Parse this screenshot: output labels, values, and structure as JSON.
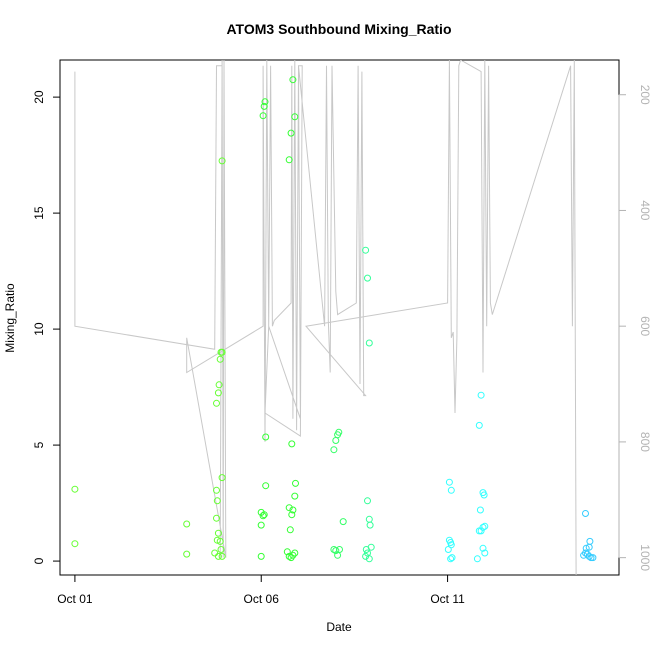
{
  "chart_data": {
    "type": "scatter",
    "title": "ATOM3 Southbound Mixing_Ratio",
    "xlabel": "Date",
    "ylabel": "Mixing_Ratio",
    "x_ticks": [
      {
        "x": 0,
        "label": "Oct 01"
      },
      {
        "x": 5,
        "label": "Oct 06"
      },
      {
        "x": 10,
        "label": "Oct 11"
      }
    ],
    "xlim": [
      -0.4,
      14.6
    ],
    "ylim": [
      -0.6,
      21.6
    ],
    "y_ticks": [
      0,
      5,
      10,
      15,
      20
    ],
    "y2_label": "",
    "y2_ticks": [
      200,
      400,
      600,
      800,
      1000
    ],
    "y2lim": [
      1030,
      140
    ],
    "y2_color": "#b3b3b3",
    "grid": false,
    "series": [
      {
        "color": "#66ff33",
        "points": [
          [
            0.0,
            3.1
          ],
          [
            0.0,
            0.75
          ],
          [
            3.0,
            1.6
          ],
          [
            3.0,
            0.3
          ],
          [
            3.8,
            3.05
          ],
          [
            3.82,
            2.6
          ],
          [
            3.8,
            1.85
          ],
          [
            3.85,
            1.2
          ],
          [
            3.82,
            0.9
          ],
          [
            3.9,
            0.85
          ],
          [
            3.92,
            0.5
          ],
          [
            3.75,
            0.35
          ],
          [
            3.85,
            0.2
          ],
          [
            3.95,
            0.2
          ],
          [
            3.95,
            3.6
          ],
          [
            3.8,
            6.8
          ],
          [
            3.85,
            7.25
          ],
          [
            3.87,
            7.6
          ],
          [
            3.9,
            8.7
          ],
          [
            3.92,
            9.0
          ],
          [
            3.95,
            9.0
          ],
          [
            3.95,
            17.25
          ]
        ]
      },
      {
        "color": "#33ff33",
        "points": [
          [
            5.0,
            0.2
          ],
          [
            5.0,
            1.55
          ],
          [
            5.0,
            2.1
          ],
          [
            5.05,
            1.95
          ],
          [
            5.08,
            2.0
          ],
          [
            5.12,
            3.25
          ],
          [
            5.12,
            5.35
          ],
          [
            5.05,
            19.2
          ],
          [
            5.08,
            19.6
          ],
          [
            5.1,
            19.8
          ],
          [
            5.7,
            0.4
          ],
          [
            5.75,
            0.2
          ],
          [
            5.8,
            0.15
          ],
          [
            5.85,
            0.25
          ],
          [
            5.9,
            0.35
          ],
          [
            5.78,
            1.35
          ],
          [
            5.82,
            2.0
          ],
          [
            5.85,
            2.2
          ],
          [
            5.75,
            2.3
          ],
          [
            5.9,
            2.8
          ],
          [
            5.92,
            3.35
          ],
          [
            5.82,
            5.05
          ],
          [
            5.75,
            17.3
          ],
          [
            5.8,
            18.45
          ],
          [
            5.85,
            20.75
          ],
          [
            5.9,
            19.15
          ]
        ]
      },
      {
        "color": "#33ff66",
        "points": [
          [
            6.95,
            0.5
          ],
          [
            7.0,
            0.45
          ],
          [
            7.05,
            0.25
          ],
          [
            7.1,
            0.5
          ],
          [
            7.2,
            1.7
          ],
          [
            6.95,
            4.8
          ],
          [
            7.0,
            5.2
          ],
          [
            7.05,
            5.45
          ],
          [
            7.08,
            5.55
          ]
        ]
      },
      {
        "color": "#33ff99",
        "points": [
          [
            7.8,
            0.2
          ],
          [
            7.85,
            0.35
          ],
          [
            7.9,
            0.1
          ],
          [
            7.95,
            0.6
          ],
          [
            7.82,
            0.5
          ],
          [
            7.9,
            1.8
          ],
          [
            7.92,
            1.55
          ],
          [
            7.85,
            2.6
          ],
          [
            7.8,
            13.4
          ],
          [
            7.85,
            12.2
          ],
          [
            7.9,
            9.4
          ]
        ]
      },
      {
        "color": "#33ffff",
        "points": [
          [
            10.05,
            3.4
          ],
          [
            10.1,
            3.05
          ],
          [
            10.05,
            0.9
          ],
          [
            10.08,
            0.8
          ],
          [
            10.1,
            0.7
          ],
          [
            10.02,
            0.5
          ],
          [
            10.12,
            0.15
          ],
          [
            10.08,
            0.1
          ],
          [
            10.8,
            0.1
          ],
          [
            10.85,
            1.3
          ],
          [
            10.9,
            1.3
          ],
          [
            10.95,
            1.45
          ],
          [
            11.0,
            1.5
          ],
          [
            10.88,
            2.2
          ],
          [
            10.95,
            2.95
          ],
          [
            10.98,
            2.85
          ],
          [
            10.95,
            0.55
          ],
          [
            11.0,
            0.35
          ],
          [
            10.85,
            5.85
          ],
          [
            10.9,
            7.15
          ]
        ]
      },
      {
        "color": "#33ccff",
        "points": [
          [
            13.65,
            0.25
          ],
          [
            13.7,
            0.35
          ],
          [
            13.75,
            0.3
          ],
          [
            13.8,
            0.2
          ],
          [
            13.85,
            0.15
          ],
          [
            13.9,
            0.15
          ],
          [
            13.72,
            0.55
          ],
          [
            13.8,
            0.6
          ],
          [
            13.82,
            0.85
          ],
          [
            13.7,
            2.05
          ]
        ]
      }
    ],
    "pressure_line": {
      "color": "#c8c8c8",
      "points": [
        [
          0.0,
          160
        ],
        [
          0.0,
          600
        ],
        [
          3.75,
          640
        ],
        [
          3.8,
          150
        ],
        [
          3.95,
          150
        ],
        [
          3.9,
          1000
        ],
        [
          3.95,
          140
        ],
        [
          3.98,
          1000
        ],
        [
          4.0,
          140
        ],
        [
          4.05,
          1000
        ],
        [
          3.0,
          620
        ],
        [
          3.0,
          680
        ],
        [
          5.05,
          600
        ],
        [
          5.05,
          150
        ],
        [
          5.1,
          800
        ],
        [
          5.15,
          140
        ],
        [
          5.2,
          600
        ],
        [
          5.25,
          150
        ],
        [
          5.3,
          600
        ],
        [
          5.35,
          590
        ],
        [
          5.8,
          560
        ],
        [
          5.82,
          150
        ],
        [
          5.85,
          760
        ],
        [
          5.9,
          140
        ],
        [
          5.95,
          780
        ],
        [
          6.0,
          150
        ],
        [
          6.05,
          760
        ],
        [
          5.2,
          600
        ],
        [
          5.1,
          750
        ],
        [
          6.05,
          790
        ],
        [
          6.1,
          150
        ],
        [
          6.0,
          150
        ],
        [
          6.7,
          600
        ],
        [
          6.75,
          150
        ],
        [
          6.8,
          590
        ],
        [
          6.85,
          680
        ],
        [
          6.9,
          150
        ],
        [
          7.0,
          540
        ],
        [
          7.05,
          580
        ],
        [
          7.55,
          560
        ],
        [
          7.6,
          150
        ],
        [
          7.65,
          700
        ],
        [
          7.7,
          160
        ],
        [
          7.75,
          720
        ],
        [
          7.8,
          720
        ],
        [
          6.2,
          600
        ],
        [
          10.0,
          560
        ],
        [
          10.05,
          140
        ],
        [
          10.1,
          620
        ],
        [
          10.15,
          610
        ],
        [
          10.2,
          750
        ],
        [
          10.25,
          620
        ],
        [
          10.3,
          150
        ],
        [
          10.35,
          140
        ],
        [
          10.9,
          160
        ],
        [
          10.95,
          680
        ],
        [
          11.0,
          140
        ],
        [
          11.05,
          600
        ],
        [
          11.1,
          150
        ],
        [
          11.15,
          560
        ],
        [
          11.2,
          580
        ],
        [
          13.3,
          150
        ],
        [
          13.35,
          600
        ],
        [
          13.4,
          140
        ],
        [
          13.45,
          1030
        ]
      ]
    }
  }
}
